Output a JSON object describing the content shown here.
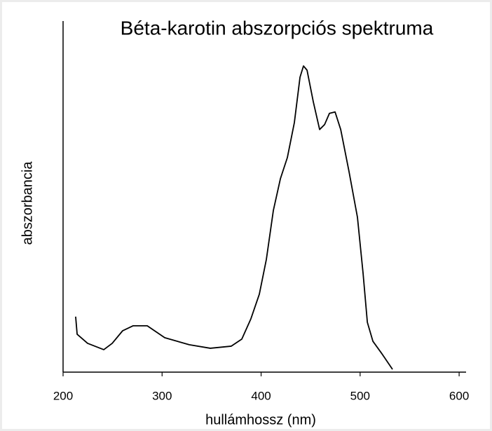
{
  "chart_data": {
    "type": "line",
    "title": "Béta-karotin abszorpciós spektruma",
    "xlabel": "hullámhossz (nm)",
    "ylabel": "abszorbancia",
    "x": [
      212.7,
      214.2,
      224.8,
      241.1,
      249.6,
      260.2,
      270.8,
      285.0,
      302.7,
      327.4,
      348.7,
      369.9,
      380.5,
      389.7,
      398.2,
      405.3,
      412.4,
      419.5,
      426.5,
      433.6,
      439.3,
      442.8,
      446.4,
      452.7,
      459.1,
      464.1,
      469.0,
      474.7,
      480.4,
      488.8,
      497.3,
      503.0,
      507.3,
      512.9,
      522.1,
      532.7
    ],
    "series": [
      {
        "color": "#000000",
        "values": [
          0.158,
          0.108,
          0.082,
          0.064,
          0.082,
          0.118,
          0.132,
          0.132,
          0.098,
          0.078,
          0.068,
          0.074,
          0.094,
          0.152,
          0.222,
          0.321,
          0.461,
          0.551,
          0.611,
          0.711,
          0.84,
          0.872,
          0.86,
          0.77,
          0.691,
          0.705,
          0.737,
          0.741,
          0.691,
          0.571,
          0.441,
          0.281,
          0.142,
          0.088,
          0.052,
          0.008
        ]
      }
    ],
    "xlim": [
      200,
      607
    ],
    "xticks": [
      200,
      300,
      400,
      500,
      600
    ],
    "ylim": [
      0,
      1
    ]
  }
}
